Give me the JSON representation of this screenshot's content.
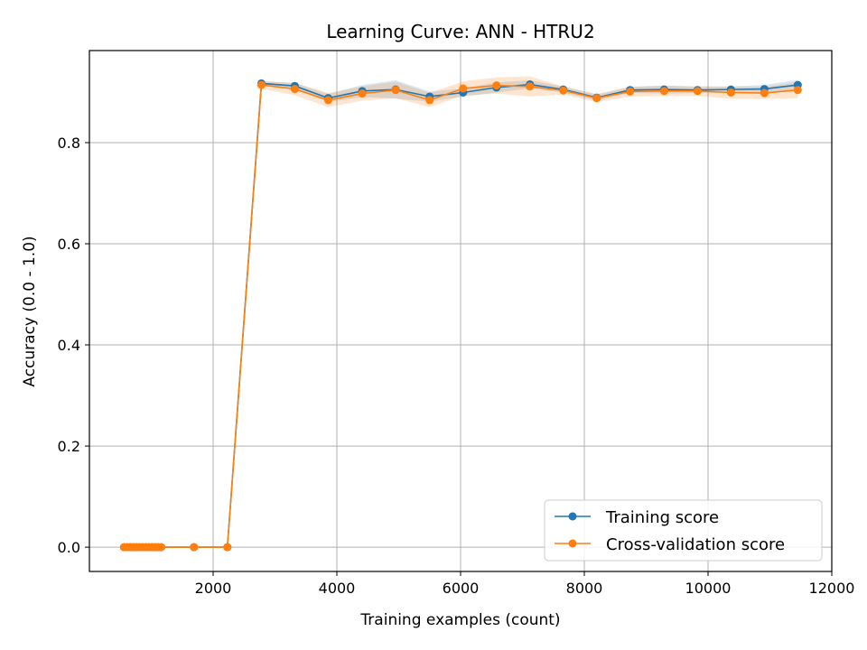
{
  "chart_data": {
    "type": "line",
    "title": "Learning Curve: ANN - HTRU2",
    "xlabel": "Training examples (count)",
    "ylabel": "Accuracy (0.0 - 1.0)",
    "xlim": [
      0,
      12000
    ],
    "ylim": [
      -0.048,
      0.982
    ],
    "x_ticks": [
      2000,
      4000,
      6000,
      8000,
      10000,
      12000
    ],
    "x_tick_labels": [
      "2000",
      "4000",
      "6000",
      "8000",
      "10000",
      "12000"
    ],
    "y_ticks": [
      0.0,
      0.2,
      0.4,
      0.6,
      0.8
    ],
    "y_tick_labels": [
      "0.0",
      "0.2",
      "0.4",
      "0.6",
      "0.8"
    ],
    "grid": true,
    "legend_position": "lower-right",
    "x": [
      560,
      610,
      660,
      710,
      760,
      810,
      860,
      910,
      960,
      1010,
      1060,
      1110,
      1160,
      1690,
      2230,
      2780,
      3320,
      3860,
      4410,
      4950,
      5500,
      6040,
      6580,
      7120,
      7660,
      8200,
      8740,
      9290,
      9830,
      10370,
      10910,
      11450
    ],
    "series": [
      {
        "name": "Training score",
        "color": "#1f77b4",
        "values": [
          0,
          0,
          0,
          0,
          0,
          0,
          0,
          0,
          0,
          0,
          0,
          0,
          0,
          0,
          0,
          0.917,
          0.912,
          0.888,
          0.902,
          0.905,
          0.891,
          0.899,
          0.909,
          0.915,
          0.905,
          0.889,
          0.904,
          0.905,
          0.904,
          0.905,
          0.906,
          0.914
        ],
        "band": [
          0,
          0,
          0,
          0,
          0,
          0,
          0,
          0,
          0,
          0,
          0,
          0,
          0,
          0,
          0,
          0.004,
          0.006,
          0.008,
          0.012,
          0.018,
          0.01,
          0.008,
          0.01,
          0.008,
          0.006,
          0.006,
          0.006,
          0.008,
          0.006,
          0.006,
          0.008,
          0.01
        ]
      },
      {
        "name": "Cross-validation score",
        "color": "#ff7f0e",
        "values": [
          0,
          0,
          0,
          0,
          0,
          0,
          0,
          0,
          0,
          0,
          0,
          0,
          0,
          0,
          0,
          0.914,
          0.906,
          0.884,
          0.897,
          0.904,
          0.884,
          0.907,
          0.913,
          0.911,
          0.903,
          0.888,
          0.901,
          0.902,
          0.902,
          0.899,
          0.898,
          0.904
        ],
        "band": [
          0,
          0,
          0,
          0,
          0,
          0,
          0,
          0,
          0,
          0,
          0,
          0,
          0,
          0,
          0,
          0.008,
          0.012,
          0.014,
          0.014,
          0.016,
          0.014,
          0.014,
          0.016,
          0.02,
          0.008,
          0.008,
          0.01,
          0.01,
          0.01,
          0.012,
          0.012,
          0.016
        ]
      }
    ]
  }
}
